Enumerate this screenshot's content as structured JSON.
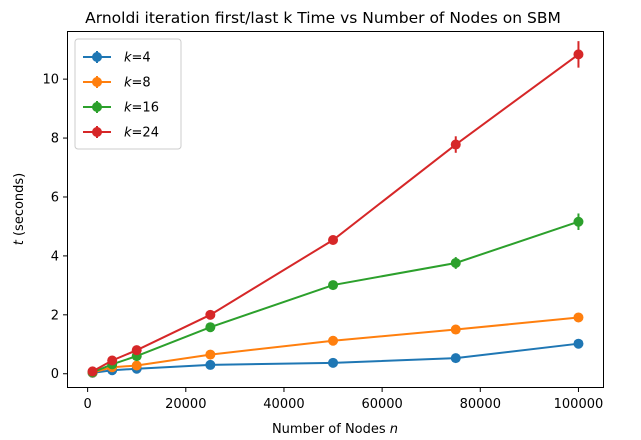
{
  "chart_data": {
    "type": "line",
    "title": "Arnoldi iteration first/last k Time vs Number of Nodes on SBM",
    "xlabel": {
      "main": "Number of Nodes ",
      "var": "n"
    },
    "ylabel": {
      "var": "t",
      "rest": " (seconds)"
    },
    "xlim": [
      -4000,
      105000
    ],
    "ylim": [
      -0.45,
      11.6
    ],
    "xticks": [
      0,
      20000,
      40000,
      60000,
      80000,
      100000
    ],
    "xtick_labels": [
      "0",
      "20000",
      "40000",
      "60000",
      "80000",
      "100000"
    ],
    "yticks": [
      0,
      2,
      4,
      6,
      8,
      10
    ],
    "ytick_labels": [
      "0",
      "2",
      "4",
      "6",
      "8",
      "10"
    ],
    "grid": false,
    "legend_position": "upper-left",
    "x": [
      1000,
      5000,
      10000,
      25000,
      50000,
      75000,
      100000
    ],
    "series": [
      {
        "name": "k=4",
        "name_var": "k",
        "name_value": "=4",
        "color": "#1f77b4",
        "values": [
          0.03,
          0.12,
          0.17,
          0.3,
          0.37,
          0.53,
          1.02
        ],
        "errors": [
          0.02,
          0.02,
          0.03,
          0.03,
          0.05,
          0.06,
          0.08
        ]
      },
      {
        "name": "k=8",
        "name_var": "k",
        "name_value": "=8",
        "color": "#ff7f0e",
        "values": [
          0.04,
          0.22,
          0.28,
          0.65,
          1.12,
          1.5,
          1.91
        ],
        "errors": [
          0.02,
          0.03,
          0.04,
          0.05,
          0.07,
          0.08,
          0.1
        ]
      },
      {
        "name": "k=16",
        "name_var": "k",
        "name_value": "=16",
        "color": "#2ca02c",
        "values": [
          0.05,
          0.32,
          0.6,
          1.58,
          3.01,
          3.76,
          5.16
        ],
        "errors": [
          0.02,
          0.04,
          0.06,
          0.08,
          0.1,
          0.2,
          0.28
        ]
      },
      {
        "name": "k=24",
        "name_var": "k",
        "name_value": "=24",
        "color": "#d62728",
        "values": [
          0.08,
          0.45,
          0.8,
          2.0,
          4.54,
          7.78,
          10.84
        ],
        "errors": [
          0.02,
          0.05,
          0.07,
          0.08,
          0.1,
          0.28,
          0.45
        ]
      }
    ]
  }
}
